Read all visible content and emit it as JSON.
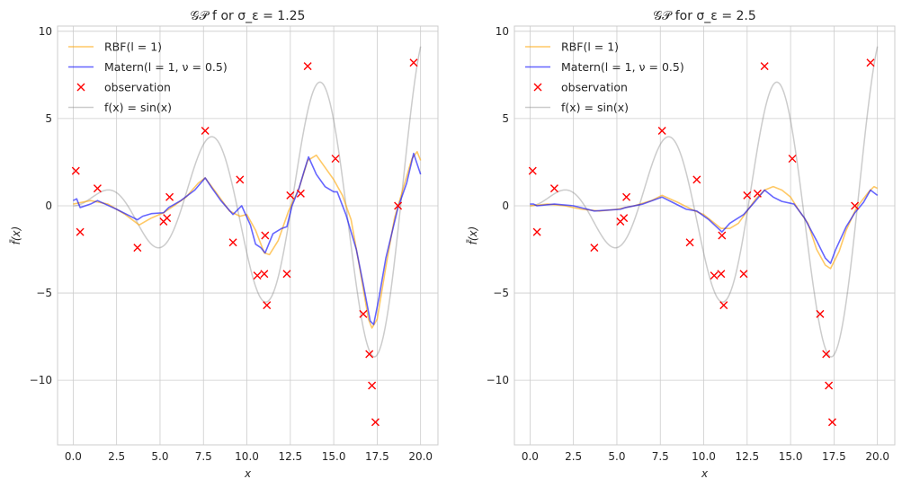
{
  "figure": {
    "background": "#ffffff",
    "grid_color": "#cccccc",
    "spine_color": "#cccccc"
  },
  "colors": {
    "rbf": "#ffa500",
    "matern": "#0000ff",
    "observation": "#ff0000",
    "truth": "#808080"
  },
  "chart_data": [
    {
      "type": "line",
      "title": "𝒢𝒫 f or σ_ε = 1.25",
      "xlabel": "x",
      "ylabel": "f̄(x)",
      "xlim": [
        -0.9,
        21.0
      ],
      "ylim": [
        -13.7,
        10.3
      ],
      "xticks": [
        0,
        2.5,
        5,
        7.5,
        10,
        12.5,
        15,
        17.5,
        20
      ],
      "xtick_labels": [
        "0.0",
        "2.5",
        "5.0",
        "7.5",
        "10.0",
        "12.5",
        "15.0",
        "17.5",
        "20.0"
      ],
      "yticks": [
        -10,
        -5,
        0,
        5,
        10
      ],
      "ytick_labels": [
        "−10",
        "−5",
        "0",
        "5",
        "10"
      ],
      "grid": true,
      "legend": "upper left",
      "legend_entries": [
        {
          "key": "rbf",
          "label": "RBF(l = 1)",
          "kind": "line"
        },
        {
          "key": "matern",
          "label": "Matern(l = 1, ν = 0.5)",
          "kind": "line"
        },
        {
          "key": "observation",
          "label": "observation",
          "kind": "marker"
        },
        {
          "key": "truth",
          "label": "f(x) = sin(x)",
          "kind": "line"
        }
      ],
      "series": [
        {
          "key": "truth",
          "name": "f(x) = sin(x)",
          "function": "x*sin(x)/2",
          "alpha": 0.4
        },
        {
          "key": "rbf",
          "name": "RBF(l = 1)",
          "alpha": 0.6,
          "points": [
            [
              0,
              0.1
            ],
            [
              1,
              0.3
            ],
            [
              2,
              0.1
            ],
            [
              3,
              -0.5
            ],
            [
              3.8,
              -1.1
            ],
            [
              4.5,
              -0.7
            ],
            [
              5.2,
              -0.4
            ],
            [
              5.8,
              0
            ],
            [
              6.5,
              0.5
            ],
            [
              7.2,
              1.3
            ],
            [
              7.6,
              1.6
            ],
            [
              8.2,
              0.8
            ],
            [
              9,
              -0.3
            ],
            [
              9.6,
              -0.6
            ],
            [
              10,
              -0.5
            ],
            [
              10.5,
              -1.4
            ],
            [
              11,
              -2.7
            ],
            [
              11.3,
              -2.8
            ],
            [
              11.8,
              -2
            ],
            [
              12.4,
              -0.3
            ],
            [
              13,
              1
            ],
            [
              13.5,
              2.6
            ],
            [
              14,
              2.9
            ],
            [
              14.5,
              2.2
            ],
            [
              15,
              1.5
            ],
            [
              15.5,
              0.6
            ],
            [
              16,
              -0.8
            ],
            [
              16.5,
              -3.6
            ],
            [
              17,
              -6.5
            ],
            [
              17.2,
              -7
            ],
            [
              17.5,
              -6.5
            ],
            [
              18,
              -3.5
            ],
            [
              18.5,
              -0.7
            ],
            [
              19,
              1
            ],
            [
              19.5,
              2.7
            ],
            [
              19.8,
              3.1
            ],
            [
              20,
              2.6
            ]
          ]
        },
        {
          "key": "matern",
          "name": "Matern(l = 1, ν = 0.5)",
          "alpha": 0.6,
          "points": [
            [
              0,
              0.3
            ],
            [
              0.2,
              0.4
            ],
            [
              0.4,
              -0.1
            ],
            [
              1,
              0.1
            ],
            [
              1.4,
              0.3
            ],
            [
              2.5,
              -0.2
            ],
            [
              3.7,
              -0.8
            ],
            [
              4,
              -0.6
            ],
            [
              4.5,
              -0.45
            ],
            [
              5.2,
              -0.4
            ],
            [
              5.5,
              -0.1
            ],
            [
              6.2,
              0.3
            ],
            [
              7,
              0.9
            ],
            [
              7.6,
              1.6
            ],
            [
              8,
              1
            ],
            [
              8.5,
              0.3
            ],
            [
              9.2,
              -0.5
            ],
            [
              9.7,
              0
            ],
            [
              10.2,
              -1.1
            ],
            [
              10.5,
              -2.2
            ],
            [
              10.8,
              -2.4
            ],
            [
              11.05,
              -2.7
            ],
            [
              11.5,
              -1.6
            ],
            [
              12,
              -1.3
            ],
            [
              12.3,
              -1.2
            ],
            [
              12.6,
              0
            ],
            [
              13,
              1
            ],
            [
              13.3,
              2
            ],
            [
              13.55,
              2.8
            ],
            [
              14,
              1.8
            ],
            [
              14.5,
              1.1
            ],
            [
              15,
              0.8
            ],
            [
              15.2,
              0.8
            ],
            [
              15.7,
              -0.5
            ],
            [
              16.3,
              -2.5
            ],
            [
              16.7,
              -4.5
            ],
            [
              17.1,
              -6.6
            ],
            [
              17.3,
              -6.8
            ],
            [
              17.6,
              -5.3
            ],
            [
              18,
              -3
            ],
            [
              18.7,
              -0.1
            ],
            [
              19.2,
              1.3
            ],
            [
              19.6,
              3
            ],
            [
              20,
              1.8
            ]
          ]
        },
        {
          "key": "observation",
          "name": "observation",
          "points": [
            [
              0.15,
              2
            ],
            [
              0.4,
              -1.5
            ],
            [
              1.4,
              1
            ],
            [
              3.7,
              -2.4
            ],
            [
              5.2,
              -0.9
            ],
            [
              5.4,
              -0.7
            ],
            [
              5.55,
              0.5
            ],
            [
              7.6,
              4.3
            ],
            [
              9.2,
              -2.1
            ],
            [
              9.6,
              1.5
            ],
            [
              10.6,
              -4.0
            ],
            [
              11,
              -3.9
            ],
            [
              11.05,
              -1.7
            ],
            [
              11.15,
              -5.7
            ],
            [
              12.3,
              -3.9
            ],
            [
              12.5,
              0.6
            ],
            [
              13.1,
              0.7
            ],
            [
              13.5,
              8
            ],
            [
              15.1,
              2.7
            ],
            [
              16.7,
              -6.2
            ],
            [
              17.05,
              -8.5
            ],
            [
              17.2,
              -10.3
            ],
            [
              17.4,
              -12.4
            ],
            [
              18.7,
              0
            ],
            [
              19.6,
              8.2
            ]
          ]
        }
      ]
    },
    {
      "type": "line",
      "title": "𝒢𝒫  for σ_ε = 2.5",
      "xlabel": "x",
      "ylabel": "f̄(x)",
      "xlim": [
        -0.9,
        21.0
      ],
      "ylim": [
        -13.7,
        10.3
      ],
      "xticks": [
        0,
        2.5,
        5,
        7.5,
        10,
        12.5,
        15,
        17.5,
        20
      ],
      "xtick_labels": [
        "0.0",
        "2.5",
        "5.0",
        "7.5",
        "10.0",
        "12.5",
        "15.0",
        "17.5",
        "20.0"
      ],
      "yticks": [
        -10,
        -5,
        0,
        5,
        10
      ],
      "ytick_labels": [
        "−10",
        "−5",
        "0",
        "5",
        "10"
      ],
      "grid": true,
      "legend": "upper left",
      "legend_entries": [
        {
          "key": "rbf",
          "label": "RBF(l = 1)",
          "kind": "line"
        },
        {
          "key": "matern",
          "label": "Matern(l = 1, ν = 0.5)",
          "kind": "line"
        },
        {
          "key": "observation",
          "label": "observation",
          "kind": "marker"
        },
        {
          "key": "truth",
          "label": "f(x) = sin(x)",
          "kind": "line"
        }
      ],
      "series": [
        {
          "key": "truth",
          "name": "f(x) = sin(x)",
          "function": "x*sin(x)/2",
          "alpha": 0.4
        },
        {
          "key": "rbf",
          "name": "RBF(l = 1)",
          "alpha": 0.6,
          "points": [
            [
              0,
              0
            ],
            [
              1,
              0.1
            ],
            [
              2,
              0
            ],
            [
              3,
              -0.2
            ],
            [
              4,
              -0.3
            ],
            [
              5,
              -0.2
            ],
            [
              6,
              0
            ],
            [
              7,
              0.3
            ],
            [
              7.6,
              0.6
            ],
            [
              8.5,
              0.2
            ],
            [
              9.5,
              -0.3
            ],
            [
              10,
              -0.5
            ],
            [
              10.5,
              -0.9
            ],
            [
              11,
              -1.3
            ],
            [
              11.5,
              -1.3
            ],
            [
              12,
              -1
            ],
            [
              12.5,
              -0.3
            ],
            [
              13,
              0.4
            ],
            [
              13.5,
              0.9
            ],
            [
              14,
              1.1
            ],
            [
              14.5,
              0.9
            ],
            [
              15,
              0.5
            ],
            [
              15.5,
              -0.3
            ],
            [
              16,
              -1
            ],
            [
              16.5,
              -2.5
            ],
            [
              17,
              -3.4
            ],
            [
              17.3,
              -3.6
            ],
            [
              17.8,
              -2.6
            ],
            [
              18.2,
              -1.4
            ],
            [
              18.8,
              -0.1
            ],
            [
              19.5,
              0.8
            ],
            [
              19.8,
              1.1
            ],
            [
              20,
              1
            ]
          ]
        },
        {
          "key": "matern",
          "name": "Matern(l = 1, ν = 0.5)",
          "alpha": 0.6,
          "points": [
            [
              0,
              0.1
            ],
            [
              0.2,
              0.1
            ],
            [
              0.4,
              0
            ],
            [
              1.4,
              0.1
            ],
            [
              2.5,
              0
            ],
            [
              3.7,
              -0.3
            ],
            [
              5.2,
              -0.2
            ],
            [
              5.5,
              -0.1
            ],
            [
              6.5,
              0.1
            ],
            [
              7.6,
              0.5
            ],
            [
              8.2,
              0.2
            ],
            [
              9,
              -0.2
            ],
            [
              9.6,
              -0.3
            ],
            [
              10.3,
              -0.8
            ],
            [
              11.05,
              -1.5
            ],
            [
              11.5,
              -1
            ],
            [
              12.3,
              -0.5
            ],
            [
              13,
              0.3
            ],
            [
              13.5,
              0.9
            ],
            [
              14,
              0.5
            ],
            [
              14.5,
              0.25
            ],
            [
              15.2,
              0.1
            ],
            [
              15.8,
              -0.7
            ],
            [
              16.5,
              -2
            ],
            [
              17,
              -3
            ],
            [
              17.3,
              -3.3
            ],
            [
              17.6,
              -2.5
            ],
            [
              18.2,
              -1.2
            ],
            [
              18.7,
              -0.4
            ],
            [
              19.2,
              0.2
            ],
            [
              19.6,
              0.9
            ],
            [
              20,
              0.6
            ]
          ]
        },
        {
          "key": "observation",
          "name": "observation",
          "points": [
            [
              0.15,
              2
            ],
            [
              0.4,
              -1.5
            ],
            [
              1.4,
              1
            ],
            [
              3.7,
              -2.4
            ],
            [
              5.2,
              -0.9
            ],
            [
              5.4,
              -0.7
            ],
            [
              5.55,
              0.5
            ],
            [
              7.6,
              4.3
            ],
            [
              9.2,
              -2.1
            ],
            [
              9.6,
              1.5
            ],
            [
              10.6,
              -4.0
            ],
            [
              11,
              -3.9
            ],
            [
              11.05,
              -1.7
            ],
            [
              11.15,
              -5.7
            ],
            [
              12.3,
              -3.9
            ],
            [
              12.5,
              0.6
            ],
            [
              13.1,
              0.7
            ],
            [
              13.5,
              8
            ],
            [
              15.1,
              2.7
            ],
            [
              16.7,
              -6.2
            ],
            [
              17.05,
              -8.5
            ],
            [
              17.2,
              -10.3
            ],
            [
              17.4,
              -12.4
            ],
            [
              18.7,
              0
            ],
            [
              19.6,
              8.2
            ]
          ]
        }
      ]
    }
  ]
}
